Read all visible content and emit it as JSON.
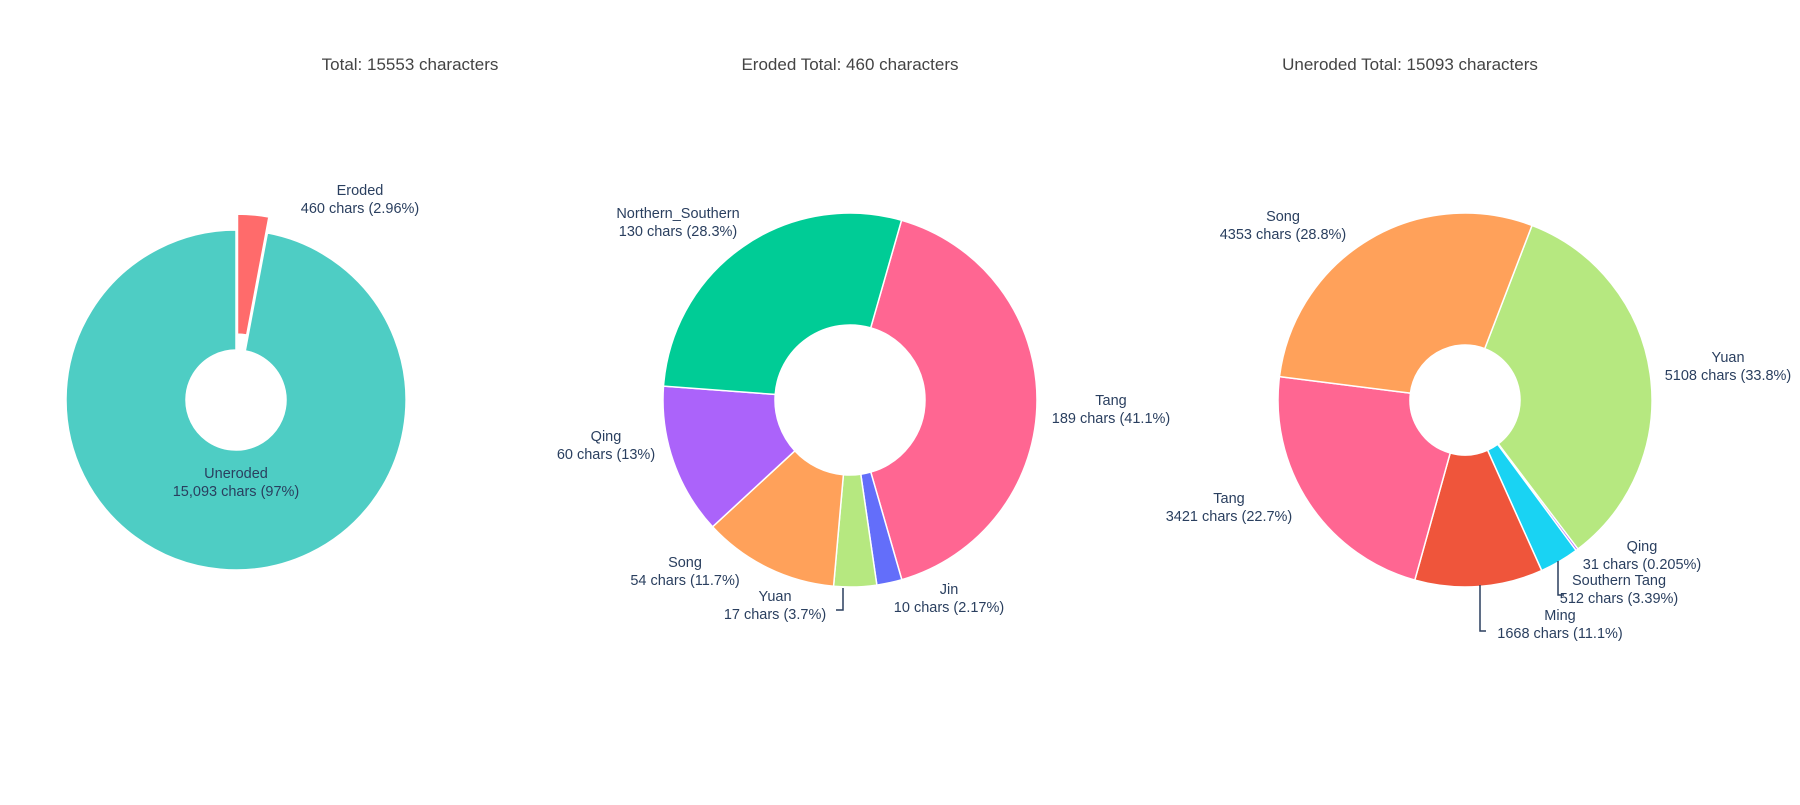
{
  "chart_data": [
    {
      "type": "pie",
      "title": "Total: 15553 characters",
      "slices": [
        {
          "label": "Eroded",
          "value": 460,
          "text": "460 chars (2.96%)",
          "color": "#FF6B6B",
          "pulled": true
        },
        {
          "label": "Uneroded",
          "value": 15093,
          "text": "15,093 chars (97%)",
          "color": "#4ECDC4",
          "pulled": false
        }
      ]
    },
    {
      "type": "pie",
      "title": "Eroded Total: 460 characters",
      "slices": [
        {
          "label": "Tang",
          "value": 189,
          "text": "189 chars (41.1%)",
          "color": "#FF6692"
        },
        {
          "label": "Jin",
          "value": 10,
          "text": "10 chars (2.17%)",
          "color": "#636EFA"
        },
        {
          "label": "Yuan",
          "value": 17,
          "text": "17 chars (3.7%)",
          "color": "#B6E880"
        },
        {
          "label": "Song",
          "value": 54,
          "text": "54 chars (11.7%)",
          "color": "#FFA15A"
        },
        {
          "label": "Qing",
          "value": 60,
          "text": "60 chars (13%)",
          "color": "#AB63FA"
        },
        {
          "label": "Northern_Southern",
          "value": 130,
          "text": "130 chars (28.3%)",
          "color": "#00CC96"
        }
      ]
    },
    {
      "type": "pie",
      "title": "Uneroded Total: 15093 characters",
      "slices": [
        {
          "label": "Yuan",
          "value": 5108,
          "text": "5108 chars (33.8%)",
          "color": "#B6E880"
        },
        {
          "label": "Qing",
          "value": 31,
          "text": "31 chars (0.205%)",
          "color": "#AB63FA"
        },
        {
          "label": "Southern Tang",
          "value": 512,
          "text": "512 chars (3.39%)",
          "color": "#19D3F3"
        },
        {
          "label": "Ming",
          "value": 1668,
          "text": "1668 chars (11.1%)",
          "color": "#EF553B"
        },
        {
          "label": "Tang",
          "value": 3421,
          "text": "3421 chars (22.7%)",
          "color": "#FF6692"
        },
        {
          "label": "Song",
          "value": 4353,
          "text": "4353 chars (28.8%)",
          "color": "#FFA15A"
        }
      ]
    }
  ]
}
